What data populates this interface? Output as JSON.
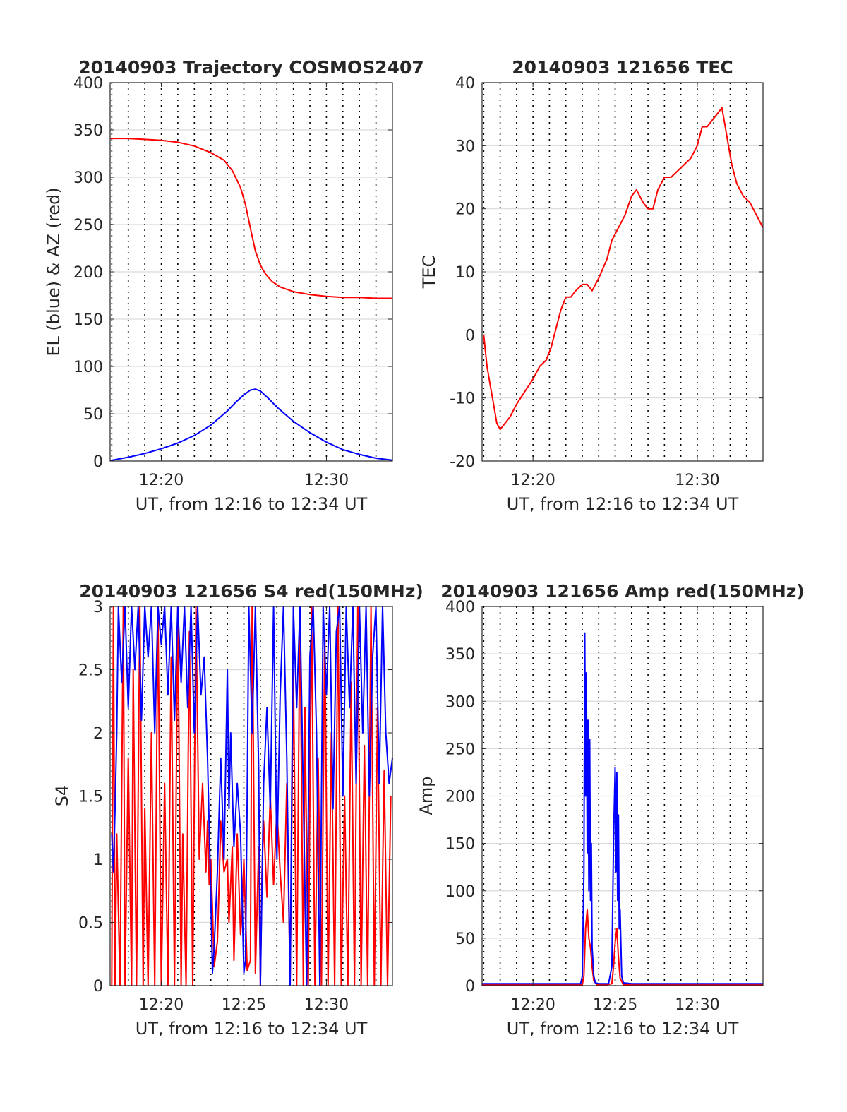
{
  "colors": {
    "el": "#0000ff",
    "az": "#ff0000",
    "grid": "#d9d9d9",
    "axis": "#262626"
  },
  "chart_data": [
    {
      "type": "line",
      "title": "20140903 Trajectory COSMOS2407",
      "xlabel": "UT, from 12:16 to 12:34 UT",
      "ylabel": "EL (blue) & AZ (red)",
      "xlim": [
        16.9,
        34.0
      ],
      "ylim": [
        0,
        400
      ],
      "xticks": [
        20,
        30
      ],
      "xticklabels": [
        "12:20",
        "12:30"
      ],
      "yticks": [
        0,
        50,
        100,
        150,
        200,
        250,
        300,
        350,
        400
      ],
      "vlines": [
        17,
        18,
        19,
        20,
        21,
        22,
        23,
        24,
        25,
        26,
        27,
        28,
        29,
        30,
        31,
        32,
        33
      ],
      "grid": true,
      "series": [
        {
          "color": "#ff0000",
          "x": [
            16.9,
            18,
            19,
            20,
            21,
            22,
            23,
            23.8,
            24.3,
            24.8,
            25.1,
            25.4,
            25.7,
            26.0,
            26.3,
            26.7,
            27.2,
            28,
            29,
            30,
            31,
            32,
            33,
            34
          ],
          "y": [
            341,
            341,
            340,
            339,
            337,
            333,
            326,
            318,
            307,
            289,
            271,
            246,
            222,
            207,
            198,
            190,
            184,
            179,
            176,
            174,
            173,
            173,
            172,
            172
          ]
        },
        {
          "color": "#0000ff",
          "x": [
            16.9,
            18,
            19,
            20,
            21,
            22,
            23,
            24,
            24.5,
            25,
            25.4,
            25.7,
            26.0,
            26.5,
            27,
            28,
            29,
            30,
            31,
            32,
            33,
            34
          ],
          "y": [
            0.5,
            4,
            8,
            13,
            19,
            27,
            38,
            53,
            62,
            70,
            75,
            76,
            74,
            66,
            57,
            42,
            30,
            20,
            12,
            7,
            3,
            1
          ]
        }
      ]
    },
    {
      "type": "line",
      "title": "20140903 121656 TEC",
      "xlabel": "UT, from 12:16 to 12:34 UT",
      "ylabel": "TEC",
      "xlim": [
        16.9,
        34.0
      ],
      "ylim": [
        -20,
        40
      ],
      "xticks": [
        20,
        30
      ],
      "xticklabels": [
        "12:20",
        "12:30"
      ],
      "yticks": [
        -20,
        -10,
        0,
        10,
        20,
        30,
        40
      ],
      "vlines": [
        17,
        18,
        19,
        20,
        21,
        22,
        23,
        24,
        25,
        26,
        27,
        28,
        29,
        30,
        31,
        32,
        33
      ],
      "grid": true,
      "series": [
        {
          "color": "#ff0000",
          "x": [
            17.0,
            17.2,
            17.4,
            17.6,
            17.8,
            18.0,
            18.3,
            18.6,
            19.0,
            19.5,
            20.0,
            20.4,
            20.8,
            21.1,
            21.4,
            21.7,
            22.0,
            22.3,
            22.6,
            23.0,
            23.3,
            23.6,
            24.0,
            24.5,
            24.8,
            25.2,
            25.6,
            26.0,
            26.3,
            26.7,
            27.0,
            27.3,
            27.6,
            28.0,
            28.4,
            28.8,
            29.2,
            29.6,
            30.0,
            30.3,
            30.6,
            30.9,
            31.2,
            31.5,
            31.7,
            31.9,
            32.1,
            32.4,
            32.8,
            33.2,
            33.6,
            34.0
          ],
          "y": [
            0,
            -5,
            -8,
            -11,
            -14,
            -15,
            -14,
            -13,
            -11,
            -9,
            -7,
            -5,
            -4,
            -2,
            1,
            4,
            6,
            6,
            7,
            8,
            8,
            7,
            9,
            12,
            15,
            17,
            19,
            22,
            23,
            21,
            20,
            20,
            23,
            25,
            25,
            26,
            27,
            28,
            30,
            33,
            33,
            34,
            35,
            36,
            33,
            30,
            27,
            24,
            22,
            21,
            19,
            17
          ]
        }
      ]
    },
    {
      "type": "line",
      "title": "20140903 121656 S4 red(150MHz)",
      "xlabel": "UT, from 12:16 to 12:34 UT",
      "ylabel": "S4",
      "xlim": [
        16.9,
        34.0
      ],
      "ylim": [
        0,
        3
      ],
      "xticks": [
        20,
        25,
        30
      ],
      "xticklabels": [
        "12:20",
        "12:25",
        "12:30"
      ],
      "yticks": [
        0,
        0.5,
        1,
        1.5,
        2,
        2.5,
        3
      ],
      "vlines": [
        17,
        18,
        19,
        20,
        21,
        22,
        23,
        24,
        25,
        26,
        27,
        28,
        29,
        30,
        31,
        32,
        33
      ],
      "grid": true,
      "series": [
        {
          "color": "#ff0000",
          "x": [
            17.0,
            17.1,
            17.2,
            17.3,
            17.5,
            17.7,
            17.8,
            18.0,
            18.2,
            18.3,
            18.5,
            18.7,
            18.9,
            19.0,
            19.2,
            19.4,
            19.6,
            19.8,
            20.0,
            20.2,
            20.4,
            20.6,
            20.8,
            21.0,
            21.2,
            21.3,
            21.5,
            21.7,
            21.9,
            22.1,
            22.3,
            22.5,
            22.7,
            22.8,
            22.9,
            23.0,
            23.1,
            23.2,
            23.4,
            23.5,
            23.6,
            23.8,
            24.0,
            24.1,
            24.3,
            24.4,
            24.6,
            24.8,
            24.9,
            25.0,
            25.2,
            25.4,
            25.5,
            25.7,
            25.9,
            26.0,
            26.1,
            26.2,
            26.4,
            26.6,
            26.8,
            27.0,
            27.2,
            27.4,
            27.6,
            27.8,
            28.0,
            28.2,
            28.4,
            28.6,
            28.7,
            28.9,
            29.1,
            29.3,
            29.5,
            29.7,
            29.9,
            30.1,
            30.3,
            30.5,
            30.7,
            30.9,
            31.1,
            31.3,
            31.5,
            31.7,
            31.9,
            32.1,
            32.3,
            32.5,
            32.7,
            32.9,
            33.1,
            33.3,
            33.5,
            33.7,
            33.9
          ],
          "y": [
            0,
            3,
            0,
            1.2,
            0,
            3,
            0,
            1.8,
            0,
            2.5,
            0,
            3,
            0,
            1.4,
            0,
            2,
            0,
            3,
            0,
            1.6,
            0,
            2.6,
            0,
            3,
            0,
            1.2,
            0,
            2.8,
            0,
            3,
            1.0,
            1.6,
            0.9,
            1.3,
            0.8,
            1.0,
            0.6,
            0.15,
            0.35,
            0.8,
            1.3,
            0.9,
            1.0,
            0.5,
            1.1,
            0.2,
            1.2,
            0.4,
            0.6,
            1.0,
            0.12,
            0.2,
            3,
            0.1,
            1.1,
            0.0,
            0.9,
            1.3,
            0.7,
            1.5,
            0.8,
            1.4,
            0.9,
            0.5,
            1.6,
            0,
            2.5,
            0,
            3,
            0,
            2.2,
            0,
            3,
            0,
            1.8,
            0,
            2.8,
            0,
            2.0,
            0,
            3,
            0,
            1.5,
            0,
            2.4,
            0,
            3,
            0,
            1.9,
            0,
            3,
            0,
            2.2,
            0,
            1.7,
            0,
            1.5
          ]
        },
        {
          "color": "#0000ff",
          "x": [
            17.0,
            17.1,
            17.2,
            17.3,
            17.4,
            17.6,
            17.8,
            18.0,
            18.2,
            18.4,
            18.6,
            18.8,
            19.0,
            19.2,
            19.4,
            19.6,
            19.8,
            20.0,
            20.2,
            20.4,
            20.6,
            20.8,
            21.0,
            21.2,
            21.4,
            21.6,
            21.8,
            22.0,
            22.2,
            22.4,
            22.6,
            22.8,
            23.0,
            23.1,
            23.2,
            23.4,
            23.6,
            23.8,
            24.0,
            24.1,
            24.2,
            24.4,
            24.6,
            24.8,
            25.0,
            25.1,
            25.2,
            25.3,
            25.5,
            25.7,
            25.9,
            26.0,
            26.2,
            26.4,
            26.6,
            26.8,
            27.0,
            27.2,
            27.4,
            27.6,
            27.8,
            28.0,
            28.2,
            28.4,
            28.6,
            28.8,
            29.0,
            29.2,
            29.4,
            29.6,
            29.8,
            30.0,
            30.2,
            30.4,
            30.6,
            30.8,
            31.0,
            31.2,
            31.4,
            31.6,
            31.8,
            32.0,
            32.2,
            32.4,
            32.6,
            32.8,
            33.0,
            33.2,
            33.4,
            33.6,
            33.8,
            34.0
          ],
          "y": [
            1.2,
            0.9,
            1.4,
            2.0,
            3,
            2.4,
            3,
            2.2,
            3,
            2.5,
            3,
            2.1,
            3,
            2.6,
            3,
            2.0,
            3,
            2.7,
            3,
            2.3,
            3,
            2.1,
            3,
            2.4,
            3,
            2.2,
            3,
            2.0,
            3,
            2.3,
            2.6,
            1.8,
            0.7,
            0.1,
            0.3,
            0.9,
            1.8,
            1.0,
            2.5,
            1.4,
            2.0,
            1.1,
            1.6,
            1.2,
            0.1,
            0.2,
            1.5,
            3,
            2.0,
            3,
            1.7,
            0,
            1.6,
            2.2,
            1.4,
            3,
            1.0,
            2.3,
            3,
            1.8,
            0,
            3,
            2.2,
            3,
            1.5,
            0,
            2.6,
            3,
            2.0,
            0,
            3,
            2.3,
            3,
            1.4,
            2.8,
            3,
            1.5,
            3,
            2.2,
            3,
            1.6,
            3,
            2.0,
            3,
            1.5,
            2.6,
            3,
            1.6,
            3,
            2.0,
            1.6,
            1.8
          ]
        }
      ]
    },
    {
      "type": "line",
      "title": "20140903 121656 Amp red(150MHz)",
      "xlabel": "UT, from 12:16 to 12:34 UT",
      "ylabel": "Amp",
      "xlim": [
        16.9,
        34.0
      ],
      "ylim": [
        0,
        400
      ],
      "xticks": [
        20,
        25,
        30
      ],
      "xticklabels": [
        "12:20",
        "12:25",
        "12:30"
      ],
      "yticks": [
        0,
        50,
        100,
        150,
        200,
        250,
        300,
        350,
        400
      ],
      "vlines": [
        17,
        18,
        19,
        20,
        21,
        22,
        23,
        24,
        25,
        26,
        27,
        28,
        29,
        30,
        31,
        32,
        33
      ],
      "grid": true,
      "series": [
        {
          "color": "#ff0000",
          "x": [
            16.9,
            23.0,
            23.1,
            23.2,
            23.3,
            23.4,
            23.5,
            23.6,
            23.7,
            23.9,
            24.5,
            24.8,
            24.9,
            25.0,
            25.1,
            25.2,
            25.3,
            25.5,
            34.0
          ],
          "y": [
            1,
            1,
            10,
            60,
            80,
            50,
            40,
            20,
            5,
            1,
            1,
            2,
            20,
            45,
            60,
            30,
            8,
            1,
            1
          ]
        },
        {
          "color": "#0000ff",
          "x": [
            16.9,
            20.0,
            22.9,
            23.0,
            23.1,
            23.15,
            23.2,
            23.25,
            23.3,
            23.35,
            23.4,
            23.45,
            23.5,
            23.55,
            23.6,
            23.7,
            23.8,
            24.0,
            24.6,
            24.8,
            24.9,
            25.0,
            25.05,
            25.1,
            25.15,
            25.2,
            25.25,
            25.3,
            25.4,
            25.5,
            26.0,
            30.0,
            34.0
          ],
          "y": [
            2,
            2,
            2,
            10,
            120,
            372,
            200,
            330,
            140,
            280,
            100,
            260,
            90,
            150,
            40,
            10,
            3,
            2,
            2,
            20,
            150,
            230,
            120,
            225,
            90,
            180,
            60,
            80,
            10,
            3,
            2,
            2,
            2
          ]
        }
      ]
    }
  ]
}
